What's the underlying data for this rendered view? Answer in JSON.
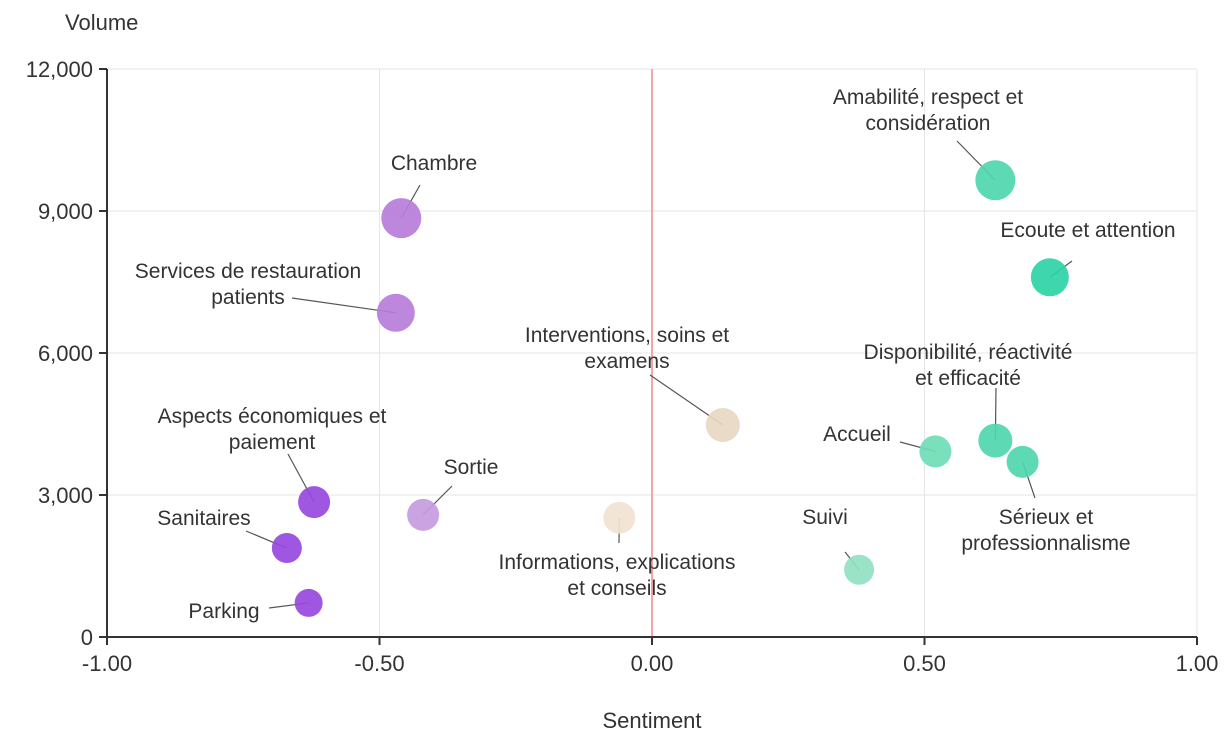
{
  "chart_data": {
    "type": "scatter",
    "xlabel": "Sentiment",
    "ylabel": "Volume",
    "xlim": [
      -1.0,
      1.0
    ],
    "ylim": [
      0,
      12000
    ],
    "x_ticks": [
      "-1.00",
      "-0.50",
      "0.00",
      "0.50",
      "1.00"
    ],
    "y_ticks": [
      "0",
      "3,000",
      "6,000",
      "9,000",
      "12,000"
    ],
    "grid": true,
    "reference_line": {
      "x": 0.0,
      "color": "#f4a6a6"
    },
    "points": [
      {
        "label": [
          "Amabilité, respect et",
          "considération"
        ],
        "x": 0.63,
        "y": 9650,
        "color": "#4fd6ac",
        "size": 20
      },
      {
        "label": [
          "Ecoute et attention"
        ],
        "x": 0.73,
        "y": 7600,
        "color": "#2cd3a6",
        "size": 19
      },
      {
        "label": [
          "Chambre"
        ],
        "x": -0.46,
        "y": 8850,
        "color": "#b77ddb",
        "size": 20
      },
      {
        "label": [
          "Services de restauration",
          "patients"
        ],
        "x": -0.47,
        "y": 6850,
        "color": "#b77ddb",
        "size": 19
      },
      {
        "label": [
          "Interventions, soins et",
          "examens"
        ],
        "x": 0.13,
        "y": 4480,
        "color": "#e8d8c4",
        "size": 17
      },
      {
        "label": [
          "Disponibilité, réactivité",
          "et efficacité"
        ],
        "x": 0.63,
        "y": 4150,
        "color": "#4fd6ac",
        "size": 17
      },
      {
        "label": [
          "Accueil"
        ],
        "x": 0.52,
        "y": 3920,
        "color": "#6fdcb5",
        "size": 16
      },
      {
        "label": [
          "Sérieux et",
          "professionnalisme"
        ],
        "x": 0.68,
        "y": 3700,
        "color": "#4fd6ac",
        "size": 16
      },
      {
        "label": [
          "Aspects économiques et",
          "paiement"
        ],
        "x": -0.62,
        "y": 2850,
        "color": "#9748dd",
        "size": 16
      },
      {
        "label": [
          "Sortie"
        ],
        "x": -0.42,
        "y": 2580,
        "color": "#c79ae0",
        "size": 16
      },
      {
        "label": [
          "Informations, explications",
          "et conseils"
        ],
        "x": -0.06,
        "y": 2520,
        "color": "#f1e3d2",
        "size": 16
      },
      {
        "label": [
          "Sanitaires"
        ],
        "x": -0.67,
        "y": 1880,
        "color": "#9748dd",
        "size": 15
      },
      {
        "label": [
          "Suivi"
        ],
        "x": 0.38,
        "y": 1420,
        "color": "#93e1c2",
        "size": 15
      },
      {
        "label": [
          "Parking"
        ],
        "x": -0.63,
        "y": 720,
        "color": "#9748dd",
        "size": 14
      }
    ]
  }
}
